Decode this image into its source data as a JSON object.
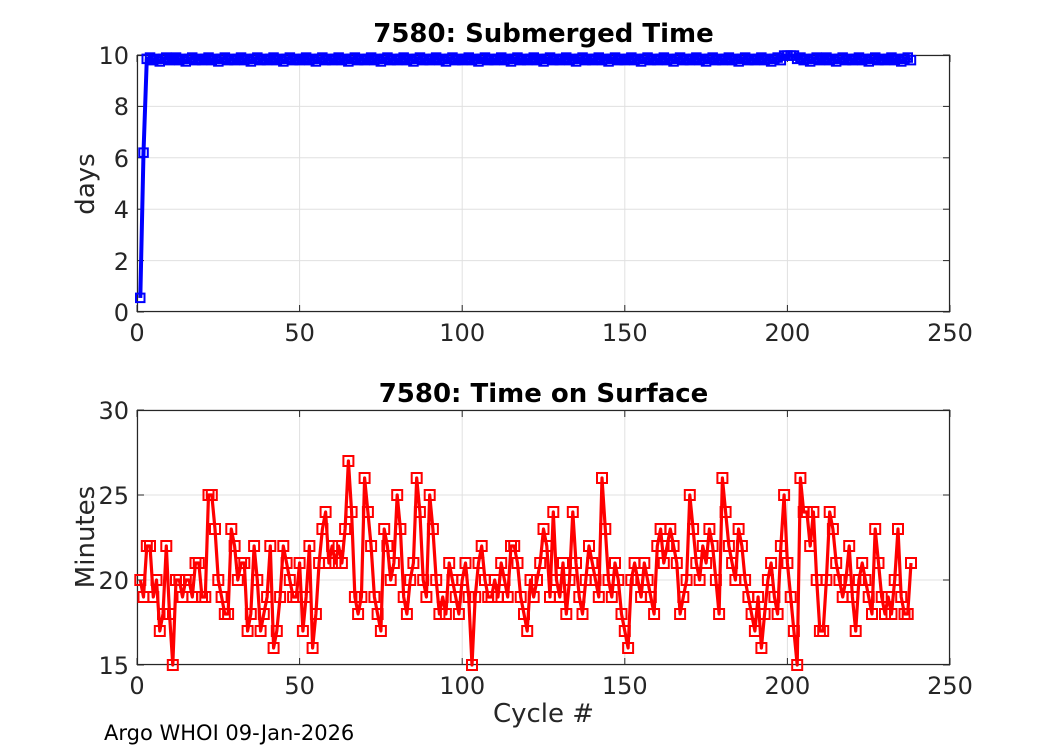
{
  "figure": {
    "footer": "Argo WHOI 09-Jan-2026"
  },
  "chart_data": [
    {
      "type": "line",
      "title": "7580: Submerged Time",
      "xlabel": "",
      "ylabel": "days",
      "color": "#0000ff",
      "marker": "square-open",
      "grid": true,
      "legend": "none",
      "xlim": [
        0,
        250
      ],
      "ylim": [
        0,
        10
      ],
      "xticks": [
        0,
        50,
        100,
        150,
        200,
        250
      ],
      "yticks": [
        0,
        2,
        4,
        6,
        8,
        10
      ],
      "x_start": 1,
      "x_step": 1,
      "y": [
        0.55,
        6.2,
        9.85,
        9.9,
        9.8,
        9.85,
        9.75,
        9.85,
        9.9,
        9.8,
        9.85,
        9.9,
        9.8,
        9.85,
        9.75,
        9.85,
        9.9,
        9.8,
        9.85,
        9.8,
        9.85,
        9.9,
        9.8,
        9.85,
        9.75,
        9.85,
        9.9,
        9.8,
        9.85,
        9.8,
        9.85,
        9.9,
        9.8,
        9.85,
        9.75,
        9.85,
        9.9,
        9.8,
        9.85,
        9.8,
        9.85,
        9.9,
        9.8,
        9.85,
        9.75,
        9.85,
        9.9,
        9.8,
        9.85,
        9.8,
        9.85,
        9.9,
        9.8,
        9.85,
        9.75,
        9.85,
        9.9,
        9.8,
        9.85,
        9.8,
        9.85,
        9.9,
        9.8,
        9.85,
        9.75,
        9.85,
        9.9,
        9.8,
        9.85,
        9.8,
        9.85,
        9.9,
        9.8,
        9.85,
        9.75,
        9.85,
        9.9,
        9.8,
        9.85,
        9.8,
        9.85,
        9.9,
        9.8,
        9.85,
        9.75,
        9.85,
        9.9,
        9.8,
        9.85,
        9.8,
        9.85,
        9.9,
        9.8,
        9.85,
        9.75,
        9.85,
        9.9,
        9.8,
        9.85,
        9.8,
        9.85,
        9.9,
        9.8,
        9.85,
        9.75,
        9.85,
        9.9,
        9.8,
        9.85,
        9.8,
        9.85,
        9.9,
        9.8,
        9.85,
        9.75,
        9.85,
        9.9,
        9.8,
        9.85,
        9.8,
        9.85,
        9.9,
        9.8,
        9.85,
        9.75,
        9.85,
        9.9,
        9.8,
        9.85,
        9.8,
        9.85,
        9.9,
        9.8,
        9.85,
        9.75,
        9.85,
        9.9,
        9.8,
        9.85,
        9.8,
        9.85,
        9.9,
        9.8,
        9.85,
        9.75,
        9.85,
        9.9,
        9.8,
        9.85,
        9.8,
        9.85,
        9.9,
        9.8,
        9.85,
        9.75,
        9.85,
        9.9,
        9.8,
        9.85,
        9.8,
        9.85,
        9.9,
        9.8,
        9.85,
        9.75,
        9.85,
        9.9,
        9.8,
        9.85,
        9.8,
        9.85,
        9.9,
        9.8,
        9.85,
        9.75,
        9.85,
        9.9,
        9.8,
        9.85,
        9.8,
        9.85,
        9.9,
        9.8,
        9.85,
        9.75,
        9.85,
        9.9,
        9.8,
        9.85,
        9.8,
        9.85,
        9.9,
        9.8,
        9.85,
        9.75,
        9.85,
        9.9,
        9.8,
        9.98,
        9.98,
        9.98,
        9.98,
        9.85,
        9.9,
        9.8,
        9.85,
        9.75,
        9.85,
        9.9,
        9.8,
        9.85,
        9.9,
        9.8,
        9.85,
        9.75,
        9.85,
        9.9,
        9.8,
        9.85,
        9.8,
        9.85,
        9.9,
        9.8,
        9.85,
        9.75,
        9.85,
        9.9,
        9.8,
        9.85,
        9.8,
        9.85,
        9.9,
        9.8,
        9.85,
        9.75,
        9.85,
        9.9,
        9.8
      ]
    },
    {
      "type": "line",
      "title": "7580: Time on Surface",
      "xlabel": "Cycle #",
      "ylabel": "Minutes",
      "color": "#ff0000",
      "marker": "square-open",
      "grid": true,
      "legend": "none",
      "xlim": [
        0,
        250
      ],
      "ylim": [
        15,
        30
      ],
      "xticks": [
        0,
        50,
        100,
        150,
        200,
        250
      ],
      "yticks": [
        15,
        20,
        25,
        30
      ],
      "x_start": 1,
      "x_step": 1,
      "y": [
        20,
        19,
        22,
        22,
        19,
        20,
        17,
        18,
        22,
        18,
        15,
        20,
        20,
        19,
        20,
        20,
        19,
        21,
        21,
        19,
        19,
        25,
        25,
        23,
        20,
        19,
        18,
        18,
        23,
        22,
        20,
        21,
        21,
        17,
        18,
        22,
        20,
        17,
        18,
        19,
        22,
        16,
        17,
        19,
        22,
        21,
        20,
        19,
        19,
        21,
        17,
        19,
        22,
        16,
        18,
        21,
        23,
        24,
        21,
        22,
        21,
        22,
        21,
        23,
        27,
        24,
        19,
        18,
        19,
        26,
        24,
        22,
        19,
        18,
        17,
        23,
        22,
        20,
        21,
        25,
        23,
        19,
        18,
        20,
        21,
        26,
        24,
        20,
        19,
        25,
        23,
        20,
        18,
        19,
        18,
        21,
        20,
        19,
        18,
        20,
        21,
        19,
        15,
        19,
        21,
        22,
        20,
        19,
        19,
        20,
        19,
        21,
        20,
        19,
        22,
        22,
        21,
        19,
        18,
        17,
        20,
        19,
        20,
        21,
        23,
        22,
        19,
        24,
        20,
        19,
        21,
        18,
        20,
        24,
        21,
        19,
        18,
        20,
        22,
        21,
        20,
        19,
        26,
        23,
        20,
        19,
        21,
        20,
        18,
        17,
        16,
        20,
        21,
        20,
        19,
        21,
        20,
        19,
        18,
        22,
        23,
        21,
        22,
        23,
        22,
        21,
        18,
        19,
        20,
        25,
        23,
        21,
        20,
        22,
        21,
        23,
        22,
        20,
        18,
        26,
        24,
        22,
        21,
        20,
        23,
        22,
        20,
        19,
        18,
        17,
        19,
        16,
        18,
        20,
        21,
        19,
        18,
        22,
        25,
        21,
        19,
        17,
        15,
        26,
        24,
        24,
        22,
        24,
        20,
        17,
        17,
        20,
        24,
        23,
        21,
        20,
        19,
        20,
        22,
        19,
        17,
        20,
        21,
        20,
        19,
        18,
        23,
        21,
        19,
        18,
        19,
        18,
        20,
        23,
        19,
        18,
        18,
        21
      ]
    }
  ]
}
